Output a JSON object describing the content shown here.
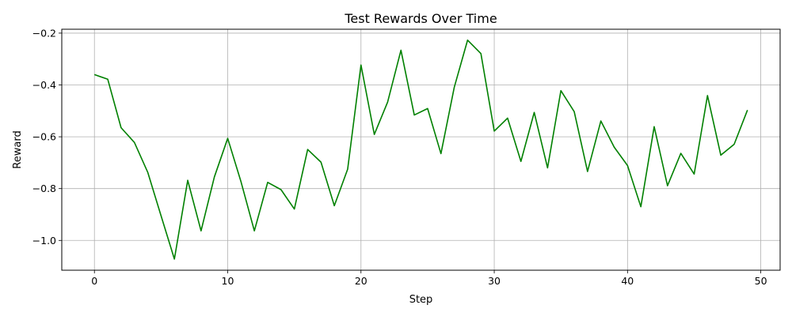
{
  "chart_data": {
    "type": "line",
    "title": "Test Rewards Over Time",
    "xlabel": "Step",
    "ylabel": "Reward",
    "xlim": [
      -2.45,
      51.45
    ],
    "ylim": [
      -1.115,
      -0.185
    ],
    "xticks": [
      0,
      10,
      20,
      30,
      40,
      50
    ],
    "yticks": [
      -1.0,
      -0.8,
      -0.6,
      -0.4,
      -0.2
    ],
    "xtick_labels": [
      "0",
      "10",
      "20",
      "30",
      "40",
      "50"
    ],
    "ytick_labels": [
      "−1.0",
      "−0.8",
      "−0.6",
      "−0.4",
      "−0.2"
    ],
    "grid": true,
    "line_color": "#008000",
    "series": [
      {
        "x": [
          0,
          1,
          2,
          3,
          4,
          5,
          6,
          7,
          8,
          9,
          10,
          11,
          12,
          13,
          14,
          15,
          16,
          17,
          18,
          19,
          20,
          21,
          22,
          23,
          24,
          25,
          26,
          27,
          28,
          29,
          30,
          31,
          32,
          33,
          34,
          35,
          36,
          37,
          38,
          39,
          40,
          41,
          42,
          43,
          44,
          45,
          46,
          47,
          48,
          49
        ],
        "values": [
          -0.36,
          -0.378,
          -0.565,
          -0.622,
          -0.737,
          -0.905,
          -1.072,
          -0.768,
          -0.963,
          -0.755,
          -0.606,
          -0.774,
          -0.963,
          -0.776,
          -0.804,
          -0.879,
          -0.649,
          -0.698,
          -0.866,
          -0.725,
          -0.323,
          -0.591,
          -0.466,
          -0.266,
          -0.516,
          -0.491,
          -0.665,
          -0.409,
          -0.227,
          -0.279,
          -0.578,
          -0.528,
          -0.695,
          -0.506,
          -0.72,
          -0.422,
          -0.503,
          -0.734,
          -0.539,
          -0.64,
          -0.711,
          -0.87,
          -0.561,
          -0.789,
          -0.664,
          -0.744,
          -0.441,
          -0.671,
          -0.629,
          -0.497
        ]
      }
    ]
  }
}
